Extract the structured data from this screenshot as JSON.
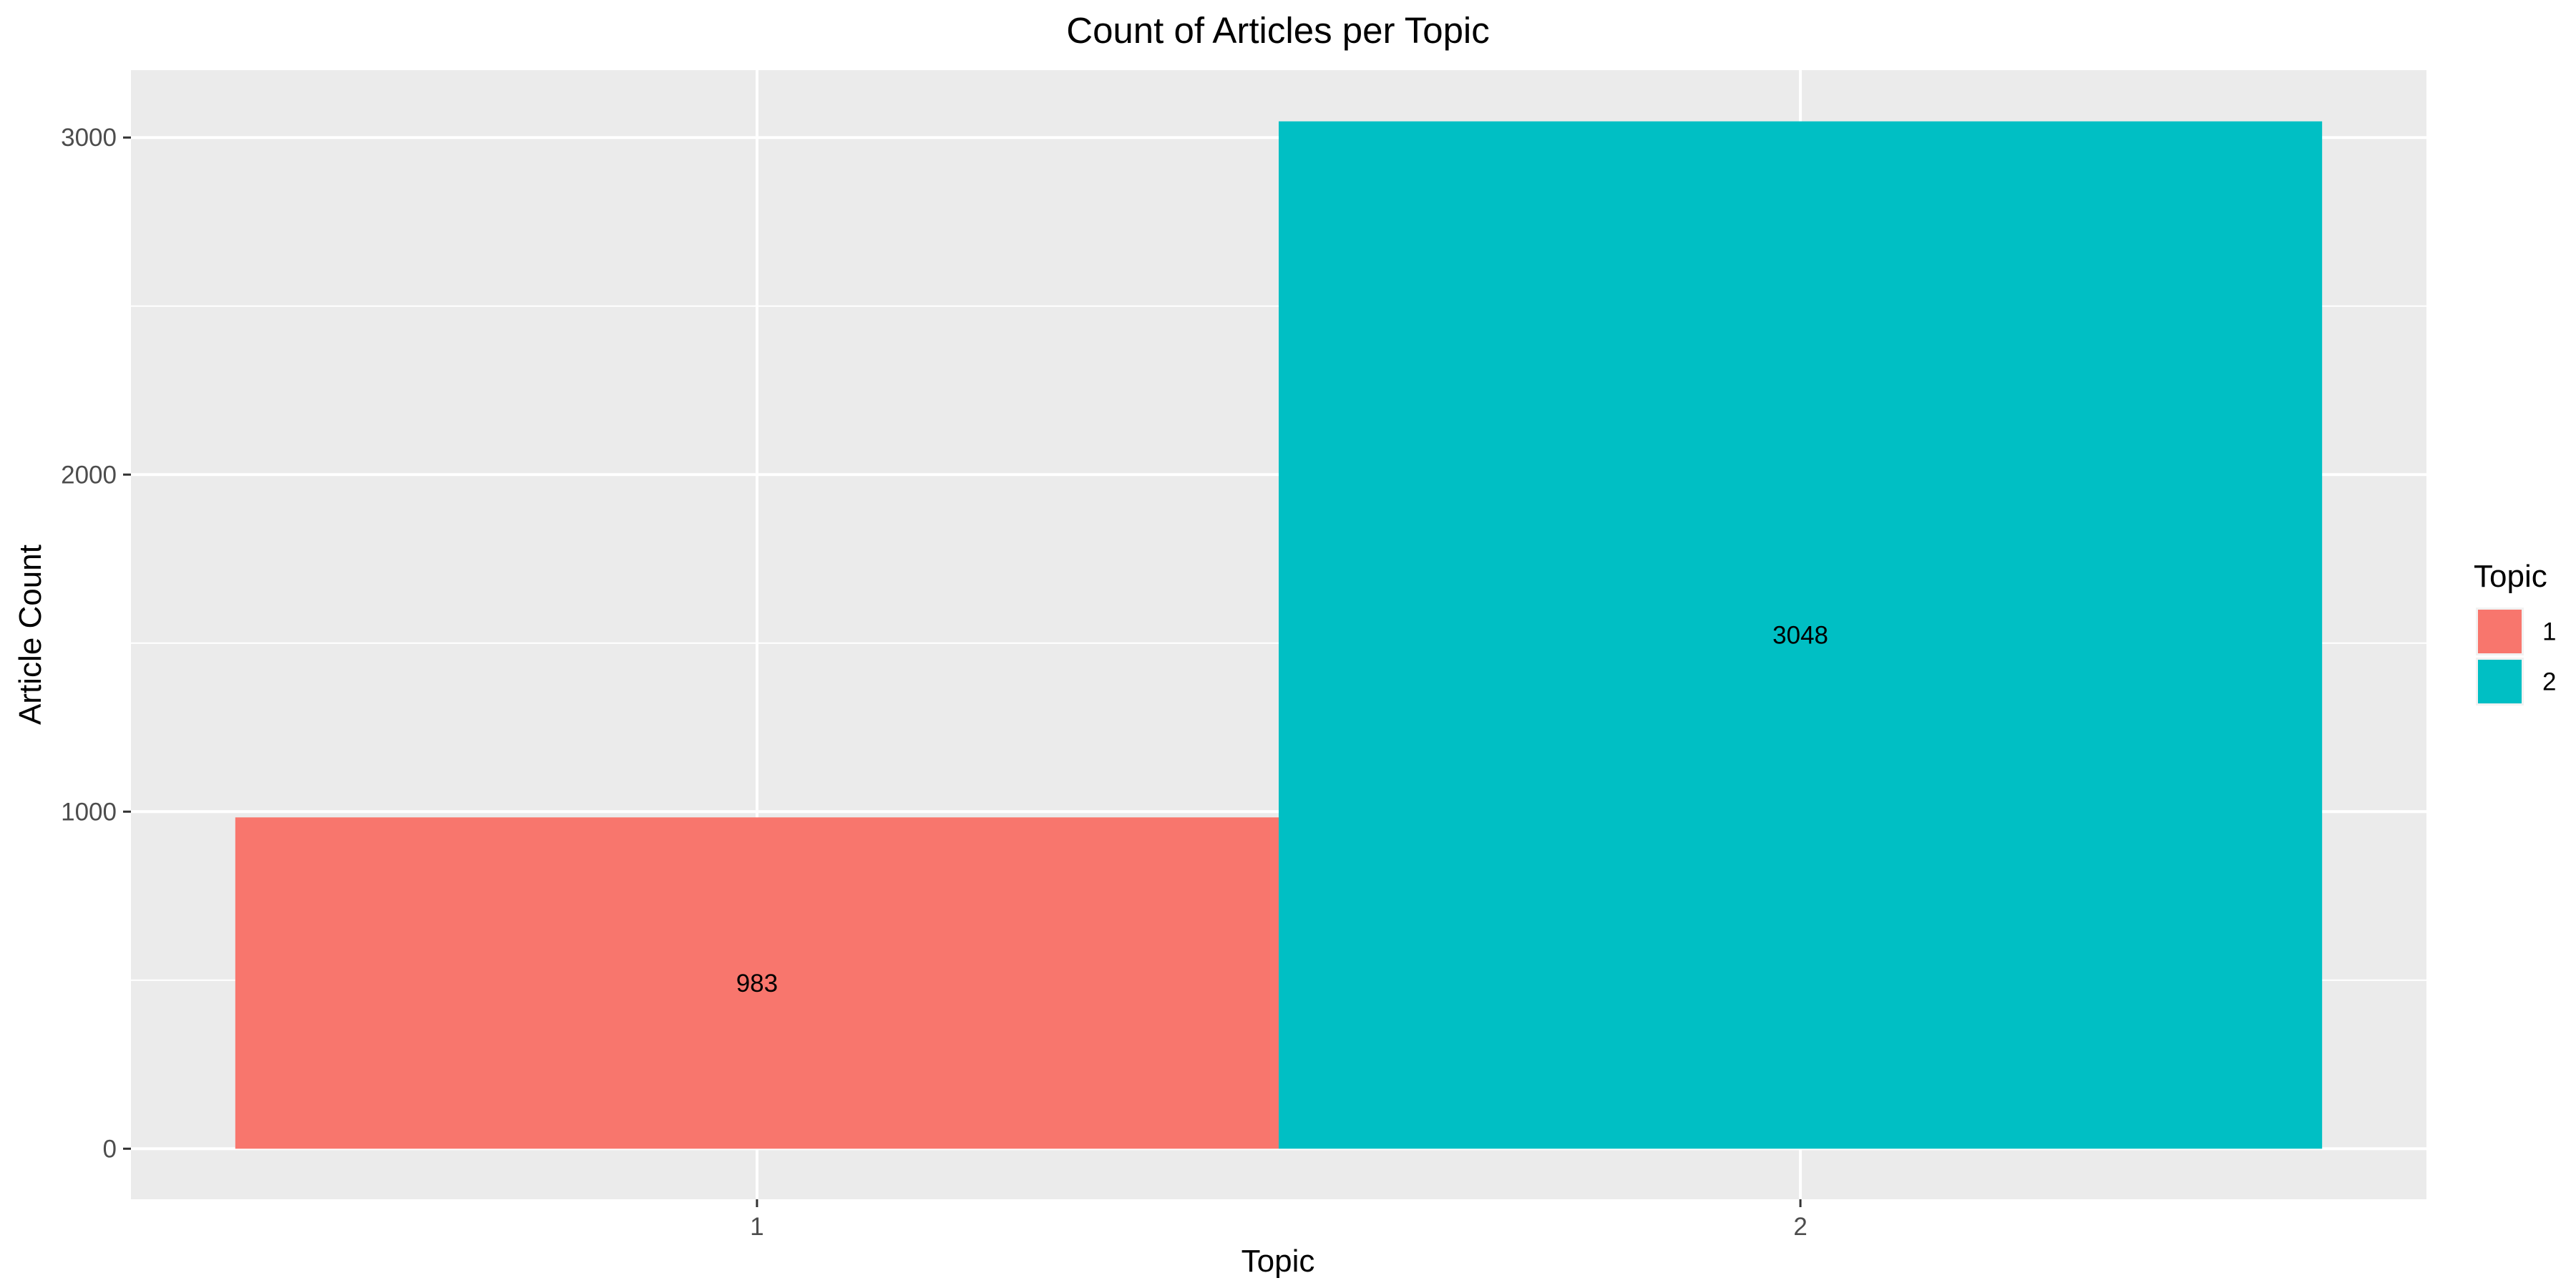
{
  "chart_data": {
    "type": "bar",
    "title": "Count of Articles per Topic",
    "xlabel": "Topic",
    "ylabel": "Article Count",
    "categories": [
      "1",
      "2"
    ],
    "values": [
      983,
      3048
    ],
    "data_labels": [
      "983",
      "3048"
    ],
    "colors": [
      "#F8766D",
      "#00BFC4"
    ],
    "ylim": [
      -150,
      3200
    ],
    "y_ticks": [
      0,
      1000,
      2000,
      3000
    ],
    "y_tick_labels": [
      "0",
      "1000",
      "2000",
      "3000"
    ],
    "grid": true,
    "panel_background": "#EBEBEB",
    "gridline_color": "#FFFFFF",
    "legend": {
      "title": "Topic",
      "position": "right",
      "entries": [
        {
          "label": "1",
          "color": "#F8766D"
        },
        {
          "label": "2",
          "color": "#00BFC4"
        }
      ]
    }
  }
}
